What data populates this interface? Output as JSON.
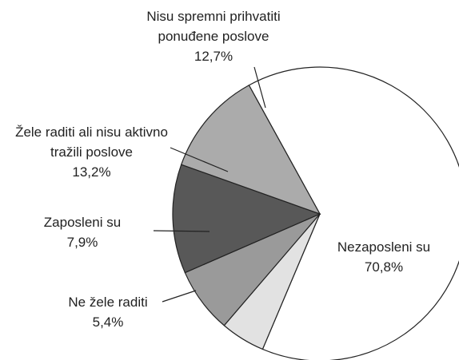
{
  "chart_data": {
    "type": "pie",
    "categories": [
      "Nezaposleni su",
      "Ne žele raditi",
      "Zaposleni su",
      "Žele raditi ali nisu aktivno tražili poslove",
      "Nisu spremni prihvatiti ponuđene poslove"
    ],
    "values": [
      70.8,
      5.4,
      7.9,
      13.2,
      12.7
    ],
    "value_labels": [
      "70,8%",
      "5,4%",
      "7,9%",
      "13,2%",
      "12,7%"
    ],
    "colors": [
      "#ffffff",
      "#e2e2e2",
      "#9a9a9a",
      "#585858",
      "#ababab"
    ]
  }
}
